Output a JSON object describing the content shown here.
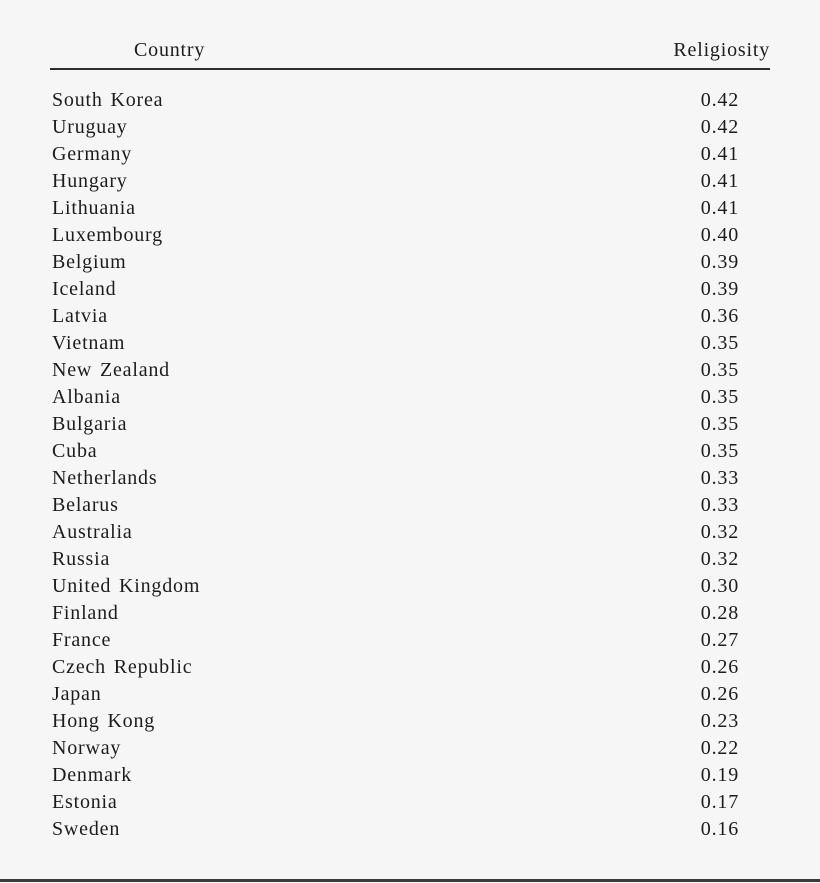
{
  "theme": {
    "background": "#f6f6f6",
    "text": "#1c1c1c",
    "rule": "#2e2e2e",
    "bottom_rule": "#3a3a3a"
  },
  "table": {
    "columns": [
      "Country",
      "Religiosity"
    ],
    "rows": [
      {
        "country": "South Korea",
        "religiosity": "0.42"
      },
      {
        "country": "Uruguay",
        "religiosity": "0.42"
      },
      {
        "country": "Germany",
        "religiosity": "0.41"
      },
      {
        "country": "Hungary",
        "religiosity": "0.41"
      },
      {
        "country": "Lithuania",
        "religiosity": "0.41"
      },
      {
        "country": "Luxembourg",
        "religiosity": "0.40"
      },
      {
        "country": "Belgium",
        "religiosity": "0.39"
      },
      {
        "country": "Iceland",
        "religiosity": "0.39"
      },
      {
        "country": "Latvia",
        "religiosity": "0.36"
      },
      {
        "country": "Vietnam",
        "religiosity": "0.35"
      },
      {
        "country": "New Zealand",
        "religiosity": "0.35"
      },
      {
        "country": "Albania",
        "religiosity": "0.35"
      },
      {
        "country": "Bulgaria",
        "religiosity": "0.35"
      },
      {
        "country": "Cuba",
        "religiosity": "0.35"
      },
      {
        "country": "Netherlands",
        "religiosity": "0.33"
      },
      {
        "country": "Belarus",
        "religiosity": "0.33"
      },
      {
        "country": "Australia",
        "religiosity": "0.32"
      },
      {
        "country": "Russia",
        "religiosity": "0.32"
      },
      {
        "country": "United Kingdom",
        "religiosity": "0.30"
      },
      {
        "country": "Finland",
        "religiosity": "0.28"
      },
      {
        "country": "France",
        "religiosity": "0.27"
      },
      {
        "country": "Czech Republic",
        "religiosity": "0.26"
      },
      {
        "country": "Japan",
        "religiosity": "0.26"
      },
      {
        "country": "Hong Kong",
        "religiosity": "0.23"
      },
      {
        "country": "Norway",
        "religiosity": "0.22"
      },
      {
        "country": "Denmark",
        "religiosity": "0.19"
      },
      {
        "country": "Estonia",
        "religiosity": "0.17"
      },
      {
        "country": "Sweden",
        "religiosity": "0.16"
      }
    ]
  }
}
